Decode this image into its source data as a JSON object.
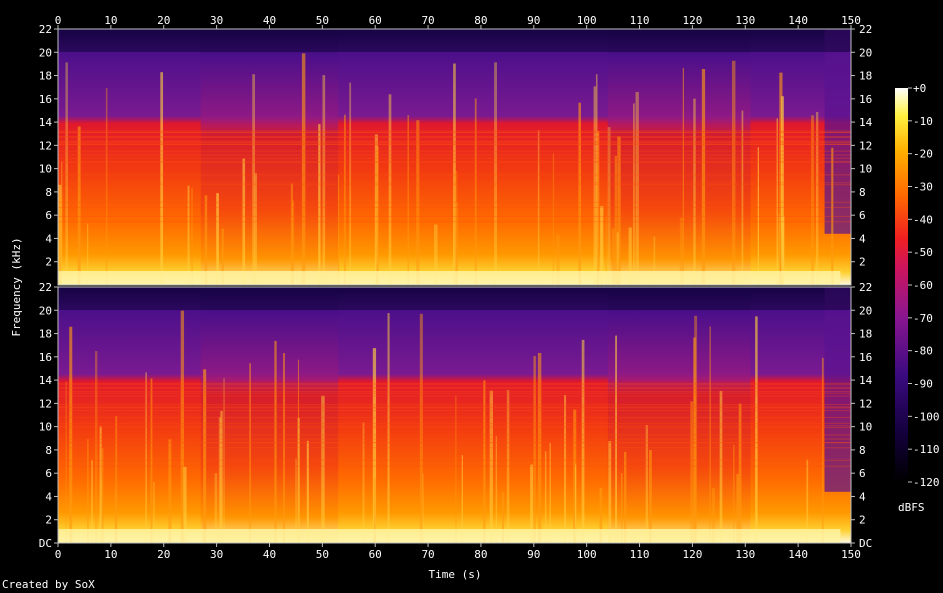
{
  "chart_data": {
    "type": "heatmap",
    "title": "",
    "xlabel": "Time (s)",
    "ylabel": "Frequency (kHz)",
    "xlim": [
      0,
      150
    ],
    "ylim": [
      0,
      22
    ],
    "x_ticks": [
      0,
      10,
      20,
      30,
      40,
      50,
      60,
      70,
      80,
      90,
      100,
      110,
      120,
      130,
      140,
      150
    ],
    "y_ticks": [
      "DC",
      "2",
      "4",
      "6",
      "8",
      "10",
      "12",
      "14",
      "16",
      "18",
      "20",
      "22"
    ],
    "channels": 2,
    "colorbar": {
      "label": "dBFS",
      "range": [
        -120,
        0
      ],
      "ticks": [
        "+0",
        "-10",
        "-20",
        "-30",
        "-40",
        "-50",
        "-60",
        "-70",
        "-80",
        "-90",
        "-100",
        "-110",
        "-120"
      ]
    },
    "notes_visible": {
      "high_band_cutoff_khz": 14,
      "quiet_segments_s": [
        [
          27,
          53
        ],
        [
          104,
          131
        ]
      ],
      "fade_out_s": [
        145,
        150
      ]
    }
  },
  "footer": {
    "credit": "Created by SoX"
  },
  "colors": {
    "background": "#000000",
    "text": "#ffffff",
    "axis": "#c0c0c0"
  }
}
